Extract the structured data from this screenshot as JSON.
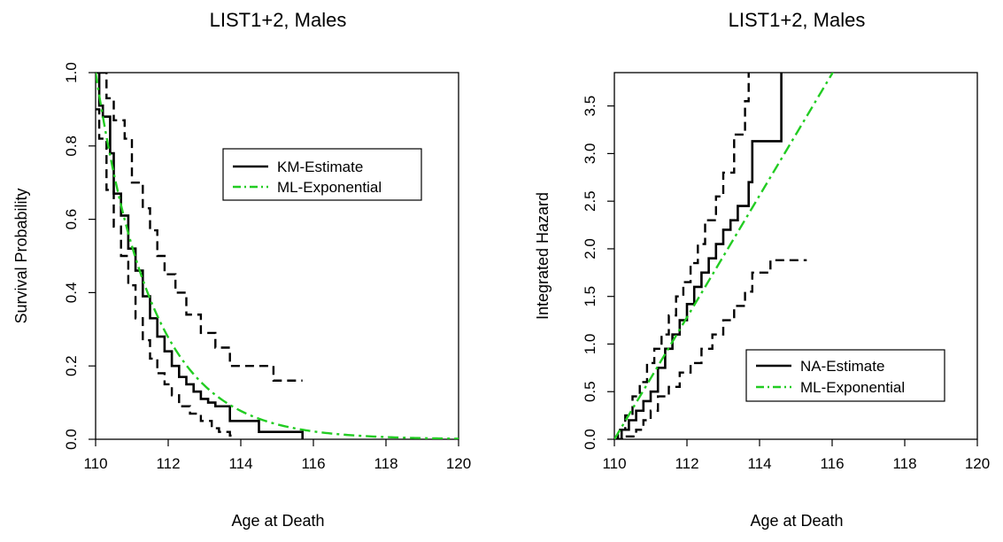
{
  "chart_data": [
    {
      "type": "line",
      "title": "LIST1+2, Males",
      "xlabel": "Age at Death",
      "ylabel": "Survival Probability",
      "xlim": [
        110,
        120
      ],
      "ylim": [
        0,
        1
      ],
      "xticks": [
        "110",
        "112",
        "114",
        "116",
        "118",
        "120"
      ],
      "yticks": [
        "0.0",
        "0.2",
        "0.4",
        "0.6",
        "0.8",
        "1.0"
      ],
      "legend_position": "right-middle",
      "legend_labels": [
        "KM-Estimate",
        "ML-Exponential"
      ],
      "series": [
        {
          "name": "KM-Estimate",
          "style": "step-solid",
          "color": "#000000",
          "x": [
            110.0,
            110.1,
            110.2,
            110.4,
            110.5,
            110.7,
            110.9,
            111.1,
            111.3,
            111.5,
            111.7,
            111.9,
            112.1,
            112.3,
            112.5,
            112.7,
            112.9,
            113.1,
            113.3,
            113.7,
            114.5,
            115.7
          ],
          "y": [
            1.0,
            0.91,
            0.88,
            0.78,
            0.67,
            0.61,
            0.52,
            0.46,
            0.39,
            0.33,
            0.28,
            0.24,
            0.2,
            0.17,
            0.15,
            0.13,
            0.11,
            0.1,
            0.09,
            0.05,
            0.02,
            0.0
          ]
        },
        {
          "name": "KM upper CI",
          "style": "step-dashed",
          "color": "#000000",
          "x": [
            110.1,
            110.3,
            110.5,
            110.8,
            111.0,
            111.3,
            111.5,
            111.7,
            111.9,
            112.2,
            112.5,
            112.9,
            113.3,
            113.7,
            114.9,
            115.7
          ],
          "y": [
            1.0,
            0.93,
            0.87,
            0.82,
            0.7,
            0.63,
            0.57,
            0.5,
            0.45,
            0.4,
            0.34,
            0.29,
            0.25,
            0.2,
            0.16,
            0.16
          ]
        },
        {
          "name": "KM lower CI",
          "style": "step-dashed",
          "color": "#000000",
          "x": [
            110.0,
            110.1,
            110.3,
            110.5,
            110.7,
            110.9,
            111.1,
            111.3,
            111.5,
            111.7,
            111.9,
            112.1,
            112.3,
            112.6,
            112.9,
            113.2,
            113.4,
            113.7,
            113.8
          ],
          "y": [
            0.9,
            0.82,
            0.68,
            0.58,
            0.5,
            0.42,
            0.33,
            0.27,
            0.22,
            0.18,
            0.15,
            0.12,
            0.09,
            0.07,
            0.05,
            0.03,
            0.02,
            0.01,
            0.0
          ]
        },
        {
          "name": "ML-Exponential",
          "style": "dash-dot",
          "color": "#22cc22",
          "rate": 0.64,
          "x0": 110
        }
      ]
    },
    {
      "type": "line",
      "title": "LIST1+2, Males",
      "xlabel": "Age at Death",
      "ylabel": "Integrated Hazard",
      "xlim": [
        110,
        120
      ],
      "ylim": [
        0,
        3.85
      ],
      "xticks": [
        "110",
        "112",
        "114",
        "116",
        "118",
        "120"
      ],
      "yticks": [
        "0.0",
        "0.5",
        "1.0",
        "1.5",
        "2.0",
        "2.5",
        "3.0",
        "3.5"
      ],
      "legend_position": "bottom-right",
      "legend_labels": [
        "NA-Estimate",
        "ML-Exponential"
      ],
      "series": [
        {
          "name": "NA-Estimate",
          "style": "step-solid",
          "color": "#000000",
          "x": [
            110.0,
            110.2,
            110.4,
            110.6,
            110.8,
            111.0,
            111.2,
            111.4,
            111.6,
            111.8,
            112.0,
            112.2,
            112.4,
            112.6,
            112.8,
            113.0,
            113.2,
            113.4,
            113.7,
            113.8,
            114.6
          ],
          "y": [
            0.0,
            0.1,
            0.2,
            0.3,
            0.4,
            0.5,
            0.75,
            0.95,
            1.1,
            1.25,
            1.42,
            1.6,
            1.75,
            1.9,
            2.05,
            2.2,
            2.3,
            2.45,
            2.7,
            3.13,
            3.85
          ]
        },
        {
          "name": "NA upper CI",
          "style": "step-dashed",
          "color": "#000000",
          "x": [
            110.0,
            110.1,
            110.3,
            110.5,
            110.7,
            110.9,
            111.1,
            111.3,
            111.5,
            111.7,
            111.9,
            112.1,
            112.3,
            112.5,
            112.8,
            113.0,
            113.3,
            113.6,
            113.7
          ],
          "y": [
            0.0,
            0.1,
            0.25,
            0.45,
            0.6,
            0.8,
            0.95,
            1.1,
            1.3,
            1.5,
            1.65,
            1.85,
            2.05,
            2.3,
            2.55,
            2.8,
            3.2,
            3.55,
            3.85
          ]
        },
        {
          "name": "NA lower CI",
          "style": "step-dashed",
          "color": "#000000",
          "x": [
            110.0,
            110.3,
            110.6,
            110.8,
            111.0,
            111.2,
            111.5,
            111.8,
            112.1,
            112.4,
            112.7,
            113.0,
            113.3,
            113.6,
            113.8,
            114.3,
            115.3
          ],
          "y": [
            0.0,
            0.03,
            0.1,
            0.2,
            0.3,
            0.45,
            0.55,
            0.7,
            0.8,
            0.95,
            1.1,
            1.25,
            1.4,
            1.55,
            1.75,
            1.88,
            1.88
          ]
        },
        {
          "name": "ML-Exponential",
          "style": "dash-dot",
          "color": "#22cc22",
          "rate": 0.64,
          "x0": 110
        }
      ]
    }
  ]
}
